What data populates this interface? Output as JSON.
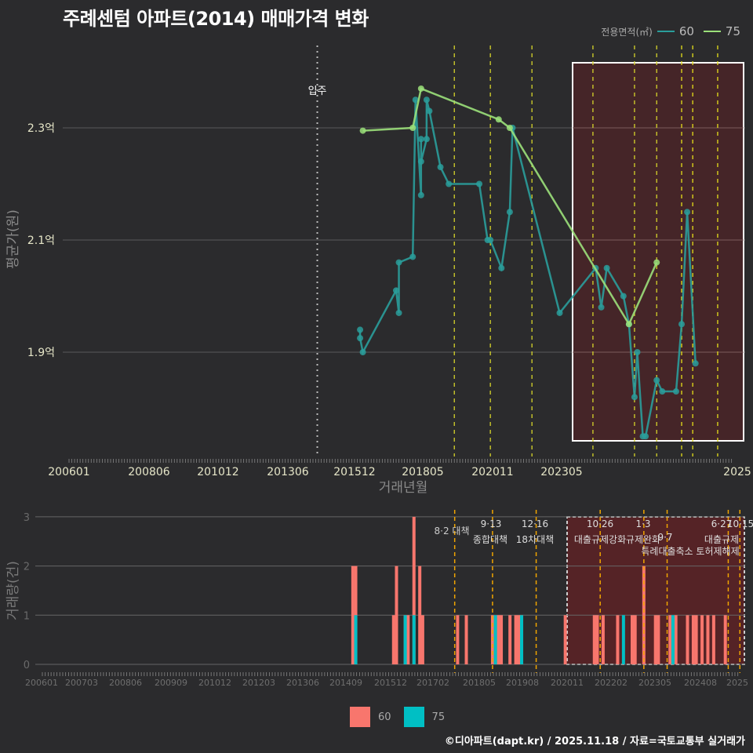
{
  "title": "주례센텀 아파트(2014) 매매가격 변화",
  "legend_top": {
    "label": "전용면적(㎡)",
    "items": [
      {
        "name": "60",
        "color": "#2a9d9b"
      },
      {
        "name": "75",
        "color": "#9be07a"
      }
    ]
  },
  "legend_bottom": {
    "items": [
      {
        "name": "60",
        "color": "#f8766d"
      },
      {
        "name": "75",
        "color": "#00bfc4"
      }
    ]
  },
  "footer": "©디아파트(dapt.kr) / 2025.11.18 / 자료=국토교통부 실거래가",
  "chart_data": [
    {
      "type": "line",
      "title": "주례센텀 아파트(2014) 매매가격 변화",
      "xlabel": "거래년월",
      "ylabel": "평균가(원)",
      "x_ticks": [
        "200601",
        "200806",
        "201012",
        "201306",
        "201512",
        "201805",
        "202011",
        "202305",
        "2025"
      ],
      "y_ticks": [
        "1.9억",
        "2.1억",
        "2.3억"
      ],
      "ylim": [
        1.74,
        2.41
      ],
      "xlim": [
        "200601",
        "202511"
      ],
      "grid": true,
      "legend_position": "top-right",
      "move_in": {
        "x": "201306",
        "label": "입주"
      },
      "highlight_box": {
        "from": "202011",
        "to": "202511"
      },
      "policy_lines": [
        "201708",
        "201809",
        "201912",
        "202110",
        "202301",
        "202309",
        "202406",
        "202410",
        "202507"
      ],
      "series": [
        {
          "name": "60",
          "color": "#2a9d9b",
          "points": [
            [
              "201410",
              1.94
            ],
            [
              "201410",
              1.925
            ],
            [
              "201411",
              1.9
            ],
            [
              "201511",
              2.01
            ],
            [
              "201512",
              1.97
            ],
            [
              "201512",
              2.06
            ],
            [
              "201605",
              2.07
            ],
            [
              "201606",
              2.35
            ],
            [
              "201608",
              2.18
            ],
            [
              "201608",
              2.28
            ],
            [
              "201608",
              2.24
            ],
            [
              "201610",
              2.28
            ],
            [
              "201610",
              2.35
            ],
            [
              "201611",
              2.33
            ],
            [
              "201703",
              2.23
            ],
            [
              "201706",
              2.2
            ],
            [
              "201805",
              2.2
            ],
            [
              "201808",
              2.1
            ],
            [
              "201809",
              2.1
            ],
            [
              "201901",
              2.05
            ],
            [
              "201904",
              2.15
            ],
            [
              "201905",
              2.3
            ],
            [
              "202010",
              1.97
            ],
            [
              "202111",
              2.05
            ],
            [
              "202201",
              1.98
            ],
            [
              "202203",
              2.05
            ],
            [
              "202209",
              2.0
            ],
            [
              "202211",
              1.95
            ],
            [
              "202301",
              1.82
            ],
            [
              "202302",
              1.9
            ],
            [
              "202304",
              1.75
            ],
            [
              "202305",
              1.75
            ],
            [
              "202309",
              1.85
            ],
            [
              "202311",
              1.83
            ],
            [
              "202404",
              1.83
            ],
            [
              "202406",
              1.95
            ],
            [
              "202408",
              2.15
            ],
            [
              "202411",
              1.88
            ]
          ]
        },
        {
          "name": "75",
          "color": "#9be07a",
          "points": [
            [
              "201411",
              2.295
            ],
            [
              "201605",
              2.3
            ],
            [
              "201608",
              2.37
            ],
            [
              "201812",
              2.315
            ],
            [
              "201904",
              2.3
            ],
            [
              "202211",
              1.95
            ],
            [
              "202309",
              2.06
            ]
          ]
        }
      ]
    },
    {
      "type": "bar",
      "ylabel": "거래량(건)",
      "x_ticks": [
        "200601",
        "200703",
        "200806",
        "200909",
        "201012",
        "201203",
        "201306",
        "201409",
        "201512",
        "201702",
        "201805",
        "201908",
        "202011",
        "202202",
        "202305",
        "202408",
        "2025"
      ],
      "y_ticks": [
        0,
        1,
        2,
        3
      ],
      "ylim": [
        0,
        3
      ],
      "annotations": [
        {
          "x": "201708",
          "date": "",
          "label": "8·2 대책"
        },
        {
          "x": "201809",
          "date": "9·13",
          "label": "종합대책"
        },
        {
          "x": "201912",
          "date": "12·16",
          "label": "18차대책"
        },
        {
          "x": "202110",
          "date": "10·26",
          "label": "대출규제강화"
        },
        {
          "x": "202301",
          "date": "1·3",
          "label": "규제완화"
        },
        {
          "x": "202309",
          "date": "9·7",
          "label": "특례대출축소 토허제해제"
        },
        {
          "x": "202506",
          "date": "6·27",
          "label": "대출규제"
        },
        {
          "x": "202510",
          "date": "10·15",
          "label": ""
        }
      ],
      "series": [
        {
          "name": "60",
          "color": "#f8766d",
          "bars": [
            [
              "201409",
              2
            ],
            [
              "201410",
              2
            ],
            [
              "201511",
              1
            ],
            [
              "201512",
              2
            ],
            [
              "201603",
              1
            ],
            [
              "201604",
              1
            ],
            [
              "201606",
              3
            ],
            [
              "201608",
              2
            ],
            [
              "201609",
              1
            ],
            [
              "201709",
              1
            ],
            [
              "201712",
              1
            ],
            [
              "201809",
              1
            ],
            [
              "201811",
              1
            ],
            [
              "201812",
              1
            ],
            [
              "201903",
              1
            ],
            [
              "201905",
              1
            ],
            [
              "201906",
              1
            ],
            [
              "201907",
              1
            ],
            [
              "202010",
              1
            ],
            [
              "202108",
              1
            ],
            [
              "202109",
              1
            ],
            [
              "202111",
              1
            ],
            [
              "202204",
              1
            ],
            [
              "202209",
              1
            ],
            [
              "202210",
              1
            ],
            [
              "202301",
              2
            ],
            [
              "202305",
              1
            ],
            [
              "202306",
              1
            ],
            [
              "202310",
              1
            ],
            [
              "202312",
              1
            ],
            [
              "202404",
              1
            ],
            [
              "202406",
              1
            ],
            [
              "202407",
              1
            ],
            [
              "202409",
              1
            ],
            [
              "202411",
              1
            ],
            [
              "202501",
              1
            ],
            [
              "202505",
              1
            ]
          ]
        },
        {
          "name": "75",
          "color": "#00bfc4",
          "bars": [
            [
              "201410",
              1
            ],
            [
              "201603",
              1
            ],
            [
              "201606",
              1
            ],
            [
              "201810",
              1
            ],
            [
              "201907",
              1
            ],
            [
              "202206",
              1
            ],
            [
              "202311",
              1
            ]
          ]
        }
      ]
    }
  ]
}
